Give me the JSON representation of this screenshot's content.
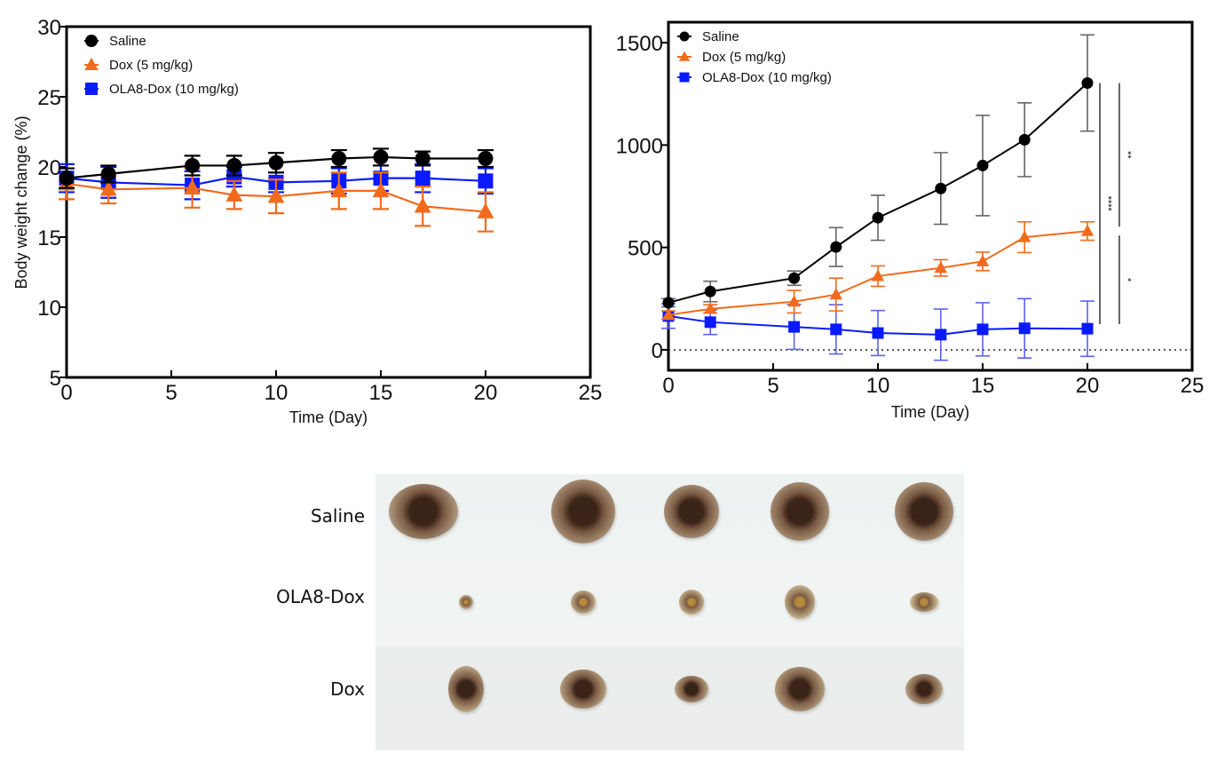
{
  "chart_data": [
    {
      "type": "line",
      "id": "body-weight",
      "title": "",
      "xlabel": "Time (Day)",
      "ylabel": "Body weight change (%)",
      "xlim": [
        0,
        25
      ],
      "ylim": [
        5,
        30
      ],
      "xticks": [
        0,
        5,
        10,
        15,
        20,
        25
      ],
      "yticks": [
        5,
        10,
        15,
        20,
        25,
        30
      ],
      "grid": false,
      "legend_position": "top-left",
      "x": [
        0,
        2,
        6,
        8,
        10,
        13,
        15,
        17,
        20
      ],
      "series": [
        {
          "name": "Saline",
          "color": "#000000",
          "marker": "circle",
          "values": [
            19.2,
            19.5,
            20.1,
            20.1,
            20.3,
            20.6,
            20.7,
            20.6,
            20.6
          ],
          "errors": [
            0.7,
            0.6,
            0.7,
            0.7,
            0.7,
            0.6,
            0.6,
            0.5,
            0.6
          ]
        },
        {
          "name": "Dox (5 mg/kg)",
          "color": "#f26a1b",
          "marker": "triangle",
          "values": [
            18.8,
            18.4,
            18.5,
            18.0,
            17.9,
            18.3,
            18.3,
            17.2,
            16.8
          ],
          "errors": [
            1.1,
            1.0,
            1.4,
            1.0,
            1.2,
            1.3,
            1.3,
            1.4,
            1.4
          ]
        },
        {
          "name": "OLA8-Dox (10 mg/kg)",
          "color": "#0a1aff",
          "marker": "square",
          "values": [
            19.2,
            18.9,
            18.7,
            19.3,
            18.9,
            19.0,
            19.2,
            19.2,
            19.0
          ],
          "errors": [
            1.0,
            1.1,
            1.0,
            0.7,
            0.7,
            0.9,
            0.9,
            1.0,
            0.9
          ]
        }
      ]
    },
    {
      "type": "line",
      "id": "tumor-volume",
      "title": "",
      "xlabel": "Time (Day)",
      "ylabel": "",
      "xlim": [
        0,
        25
      ],
      "ylim": [
        -100,
        1600
      ],
      "xticks": [
        0,
        5,
        10,
        15,
        20,
        25
      ],
      "yticks": [
        0,
        500,
        1000,
        1500
      ],
      "grid": false,
      "zero_line": "dotted",
      "legend_position": "top-left",
      "x": [
        0,
        2,
        6,
        8,
        10,
        13,
        15,
        17,
        20
      ],
      "series": [
        {
          "name": "Saline",
          "color": "#000000",
          "marker": "circle",
          "values": [
            230,
            285,
            350,
            502,
            645,
            788,
            900,
            1026,
            1303
          ],
          "errors": [
            20,
            50,
            35,
            95,
            110,
            175,
            245,
            180,
            235
          ]
        },
        {
          "name": "Dox (5 mg/kg)",
          "color": "#f26a1b",
          "marker": "triangle",
          "values": [
            170,
            200,
            235,
            270,
            360,
            400,
            432,
            550,
            580
          ],
          "errors": [
            20,
            20,
            55,
            80,
            50,
            40,
            45,
            75,
            45
          ]
        },
        {
          "name": "OLA8-Dox (10 mg/kg)",
          "color": "#0a1aff",
          "marker": "square",
          "values": [
            165,
            135,
            112,
            100,
            82,
            74,
            100,
            105,
            103
          ],
          "errors": [
            60,
            60,
            110,
            120,
            110,
            125,
            130,
            145,
            135
          ]
        }
      ],
      "significance": [
        {
          "label": "****",
          "from": "Saline",
          "to": "OLA8-Dox (10 mg/kg)"
        },
        {
          "label": "**",
          "from": "Saline",
          "to": "Dox (5 mg/kg)"
        },
        {
          "label": "*",
          "from": "Dox (5 mg/kg)",
          "to": "OLA8-Dox (10 mg/kg)"
        }
      ]
    }
  ],
  "photo": {
    "description": "Excised tumors photographed on white background",
    "rows": [
      {
        "label": "Saline",
        "count": 5
      },
      {
        "label": "OLA8-Dox",
        "count": 5
      },
      {
        "label": "Dox",
        "count": 5
      }
    ]
  }
}
